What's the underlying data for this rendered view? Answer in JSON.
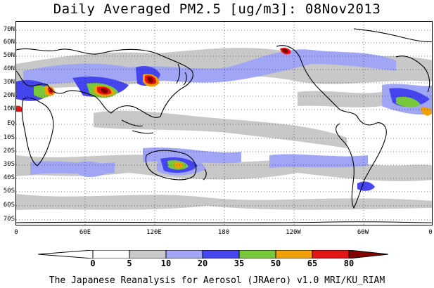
{
  "title": "Daily Averaged PM2.5 [ug/m3]: 08Nov2013",
  "footer": "The Japanese Reanalysis for Aerosol (JRAero) v1.0 MRI/KU_RIAM",
  "map": {
    "lat_labels": [
      "70N",
      "60N",
      "50N",
      "40N",
      "30N",
      "20N",
      "10N",
      "EQ",
      "10S",
      "20S",
      "30S",
      "40S",
      "50S",
      "60S",
      "70S"
    ],
    "lon_labels": [
      "0",
      "60E",
      "120E",
      "180",
      "120W",
      "60W",
      "0"
    ]
  },
  "legend": {
    "bins": [
      {
        "color": "#ffffff"
      },
      {
        "color": "#c8c8c8"
      },
      {
        "color": "#a0a5f5"
      },
      {
        "color": "#4646f0"
      },
      {
        "color": "#78c83c"
      },
      {
        "color": "#f0a000"
      },
      {
        "color": "#e61414"
      },
      {
        "color": "#820000"
      }
    ],
    "tick_labels": [
      "0",
      "5",
      "10",
      "20",
      "35",
      "50",
      "65",
      "80"
    ]
  },
  "colors": {
    "coast": "#000000",
    "grid": "#000000"
  }
}
